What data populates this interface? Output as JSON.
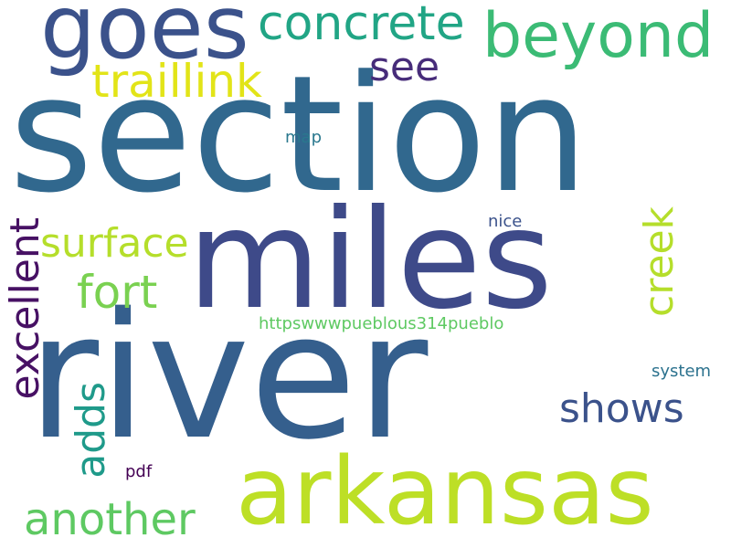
{
  "words": [
    {
      "key": "section",
      "text": "section",
      "color": "#31688e"
    },
    {
      "key": "river",
      "text": "river",
      "color": "#355f8d"
    },
    {
      "key": "miles",
      "text": "miles",
      "color": "#3e4a89"
    },
    {
      "key": "arkansas",
      "text": "arkansas",
      "color": "#bddf26"
    },
    {
      "key": "goes",
      "text": "goes",
      "color": "#3b528b"
    },
    {
      "key": "beyond",
      "text": "beyond",
      "color": "#3bbb75"
    },
    {
      "key": "concrete",
      "text": "concrete",
      "color": "#21a585"
    },
    {
      "key": "traillink",
      "text": "traillink",
      "color": "#e2e418"
    },
    {
      "key": "see",
      "text": "see",
      "color": "#472c7a"
    },
    {
      "key": "surface",
      "text": "surface",
      "color": "#b5de2b"
    },
    {
      "key": "fort",
      "text": "fort",
      "color": "#7ad151"
    },
    {
      "key": "excellent",
      "text": "excellent",
      "color": "#471164"
    },
    {
      "key": "creek",
      "text": "creek",
      "color": "#b5de2b"
    },
    {
      "key": "shows",
      "text": "shows",
      "color": "#3b528b"
    },
    {
      "key": "adds",
      "text": "adds",
      "color": "#1f9a8a"
    },
    {
      "key": "another",
      "text": "another",
      "color": "#5ec962"
    },
    {
      "key": "url",
      "text": "httpswwwpueblous314pueblo",
      "color": "#5ec962"
    },
    {
      "key": "map",
      "text": "map",
      "color": "#2a788e"
    },
    {
      "key": "nice",
      "text": "nice",
      "color": "#3b528b"
    },
    {
      "key": "system",
      "text": "system",
      "color": "#2c728e"
    },
    {
      "key": "pdf",
      "text": "pdf",
      "color": "#440154"
    }
  ]
}
